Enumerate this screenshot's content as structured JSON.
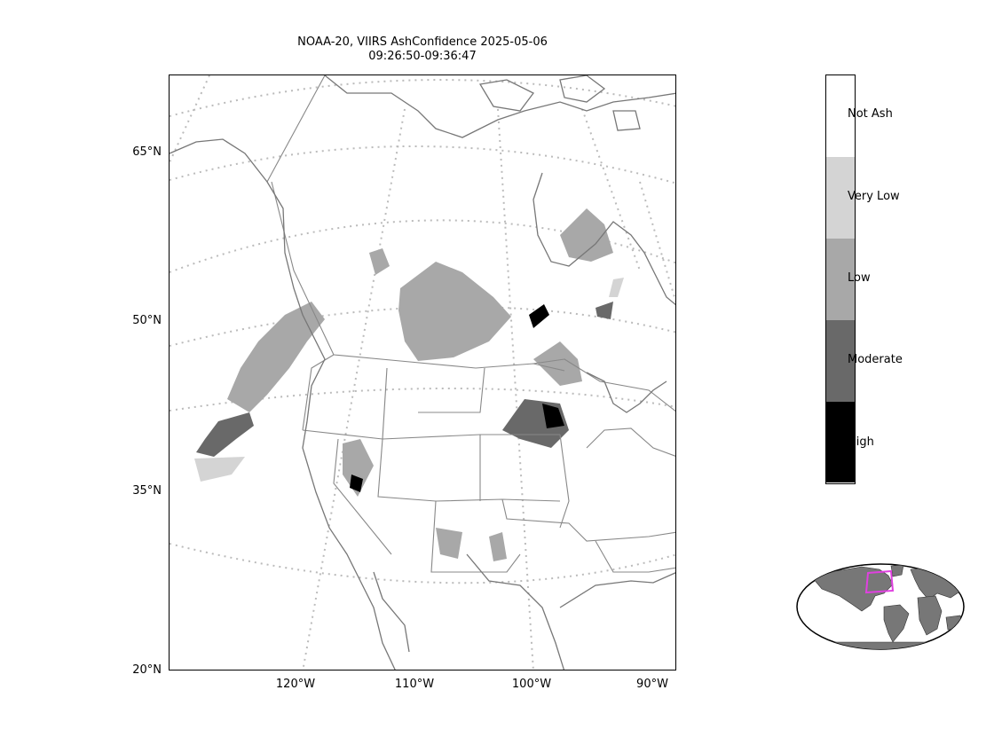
{
  "title": {
    "line1": "NOAA-20, VIIRS AshConfidence 2025-05-06",
    "line2": "09:26:50-09:36:47"
  },
  "map": {
    "lat_ticks": [
      "65°N",
      "50°N",
      "35°N",
      "20°N"
    ],
    "lon_ticks": [
      "120°W",
      "110°W",
      "100°W",
      "90°W"
    ]
  },
  "colorbar": {
    "categories": [
      {
        "label": "Not Ash",
        "color": "#ffffff"
      },
      {
        "label": "Very Low",
        "color": "#d4d4d4"
      },
      {
        "label": "Low",
        "color": "#a8a8a8"
      },
      {
        "label": "Moderate",
        "color": "#696969"
      },
      {
        "label": "High",
        "color": "#000000"
      }
    ]
  },
  "inset": {
    "land_color": "#777777",
    "highlight_color": "#e040e0"
  },
  "colors": {
    "coastline": "#777777",
    "borders": "#888888",
    "gridlines": "#bbbbbb"
  }
}
